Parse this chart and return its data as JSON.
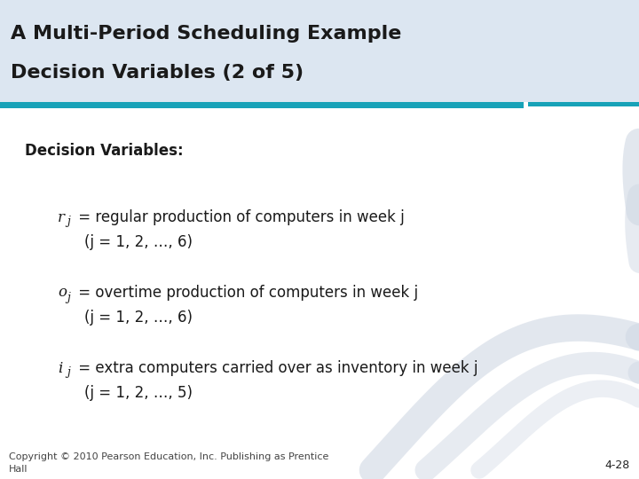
{
  "title_line1": "A Multi-Period Scheduling Example",
  "title_line2": "Decision Variables (2 of 5)",
  "title_bg_color": "#dce6f1",
  "title_bar_color": "#17a2b8",
  "title_fontsize": 16,
  "body_bg_color": "#ffffff",
  "section_header": "Decision Variables:",
  "section_header_fontsize": 12,
  "bullet1_var": "r",
  "bullet1_rest": " = regular production of computers in week j",
  "bullet1_detail": "(j = 1, 2, …, 6)",
  "bullet2_var": "o",
  "bullet2_rest": " = overtime production of computers in week j",
  "bullet2_detail": "(j = 1, 2, …, 6)",
  "bullet3_var": "i",
  "bullet3_rest": " = extra computers carried over as inventory in week j",
  "bullet3_detail": "(j = 1, 2, …, 5)",
  "body_fontsize": 12,
  "footer_text": "Copyright © 2010 Pearson Education, Inc. Publishing as Prentice\nHall",
  "footer_right": "4-28",
  "footer_fontsize": 8,
  "wave_color": "#d0d8e4"
}
